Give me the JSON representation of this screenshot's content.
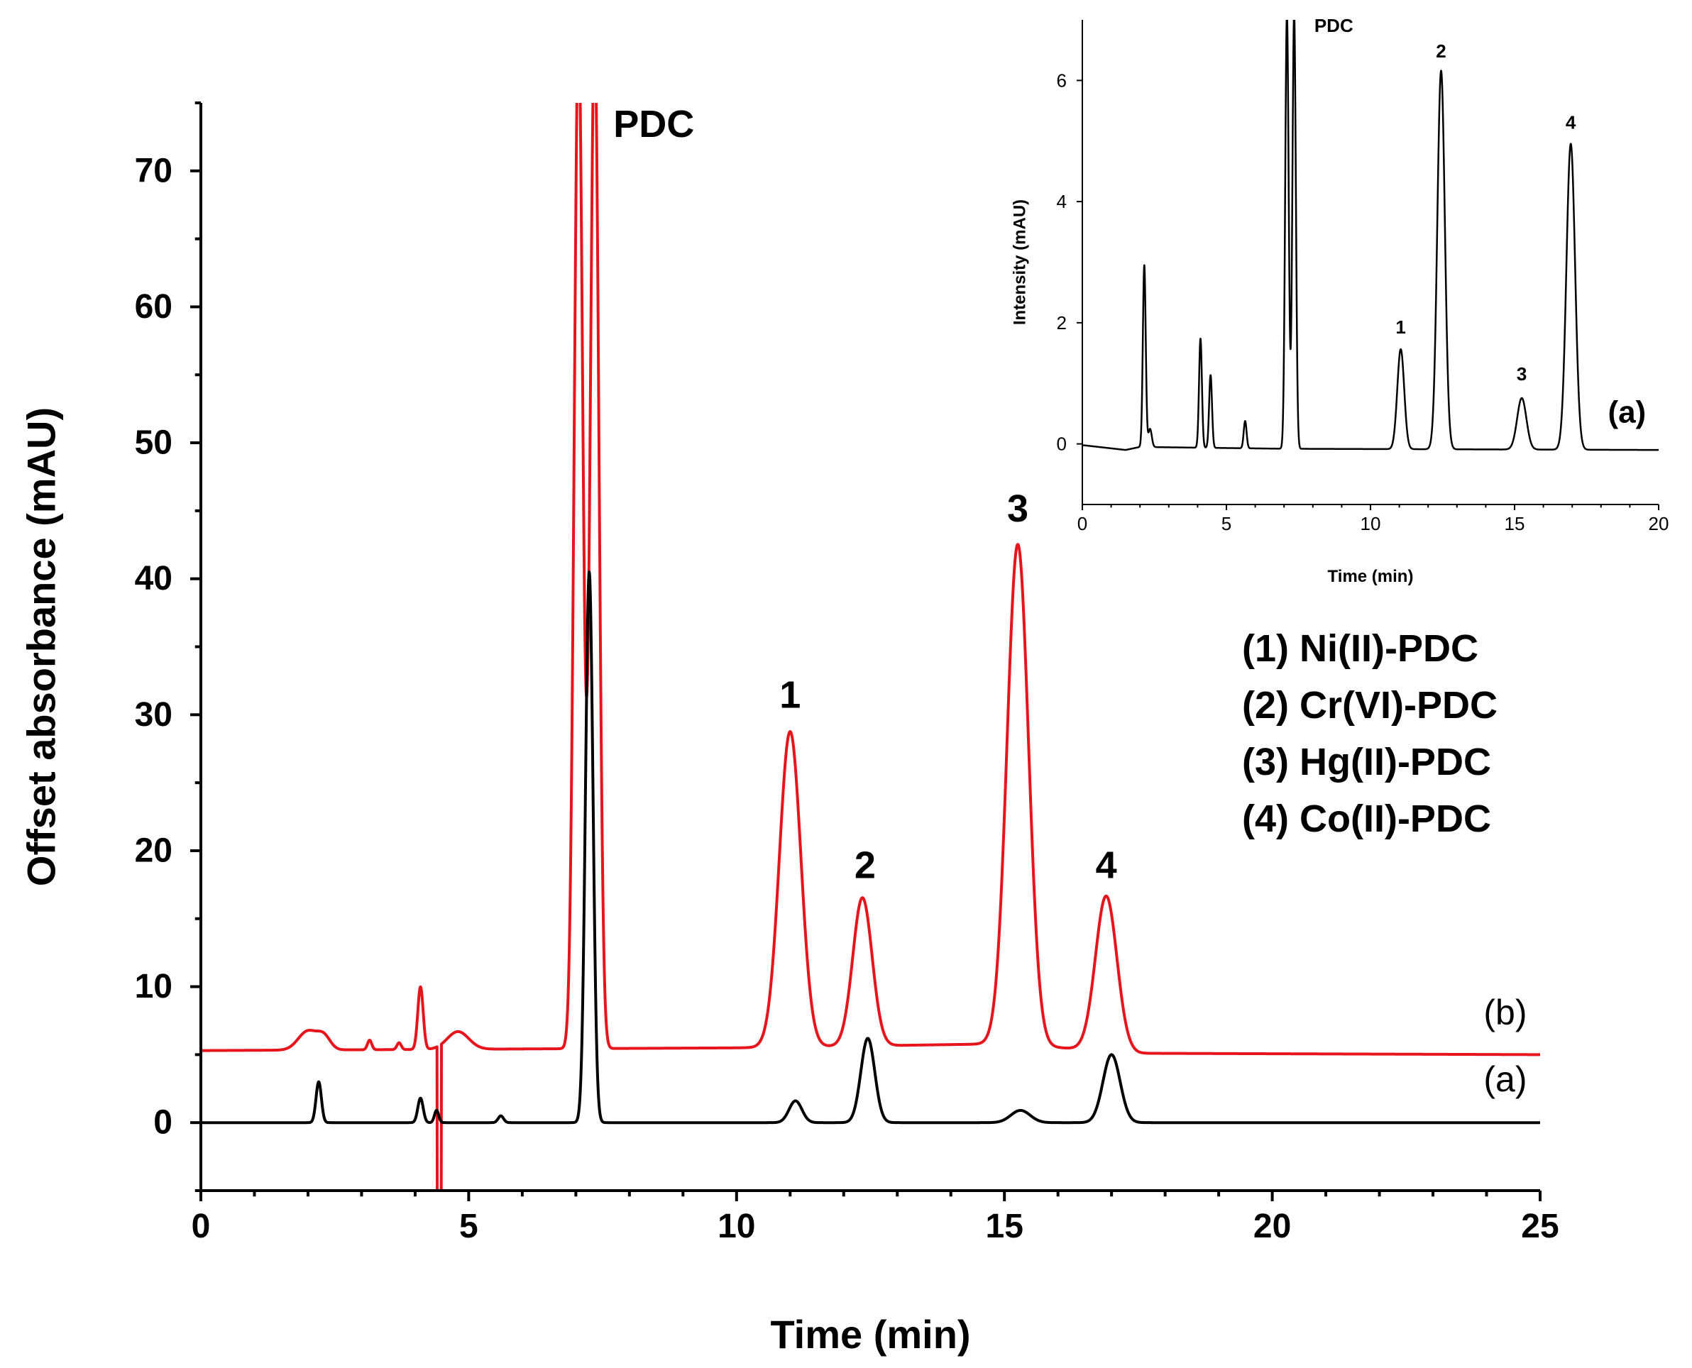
{
  "chart_data": [
    {
      "type": "line",
      "name": "main-chromatogram",
      "xlabel": "Time (min)",
      "ylabel": "Offset absorbance (mAU)",
      "xlim": [
        0,
        25
      ],
      "ylim": [
        -5,
        75
      ],
      "xticks": [
        0,
        5,
        10,
        15,
        20,
        25
      ],
      "yticks": [
        0,
        10,
        20,
        30,
        40,
        50,
        60,
        70
      ],
      "series": [
        {
          "name": "(b)",
          "color": "#e8141c",
          "baseline": [
            [
              0,
              5.3
            ],
            [
              10,
              5.5
            ],
            [
              15,
              5.8
            ],
            [
              17.5,
              5.1
            ],
            [
              25,
              5.0
            ]
          ],
          "peaks": [
            {
              "t": 2.0,
              "h": 1.4,
              "w": 0.18
            },
            {
              "t": 2.3,
              "h": 0.9,
              "w": 0.12
            },
            {
              "t": 3.15,
              "h": 0.7,
              "w": 0.04
            },
            {
              "t": 3.7,
              "h": 0.5,
              "w": 0.04
            },
            {
              "t": 4.1,
              "h": 4.6,
              "w": 0.05
            },
            {
              "t": 4.8,
              "h": 1.3,
              "w": 0.2
            },
            {
              "t": 7.05,
              "h": 75,
              "w": 0.08
            },
            {
              "t": 7.35,
              "h": 75,
              "w": 0.08
            },
            {
              "t": 11.0,
              "h": 23.2,
              "w": 0.2
            },
            {
              "t": 12.35,
              "h": 10.9,
              "w": 0.18
            },
            {
              "t": 15.25,
              "h": 36.8,
              "w": 0.2
            },
            {
              "t": 16.9,
              "h": 11.4,
              "w": 0.2
            }
          ],
          "dip": {
            "t": 4.45,
            "min": -5
          }
        },
        {
          "name": "(a)",
          "color": "#000000",
          "baseline": [
            [
              0,
              0
            ],
            [
              25,
              0
            ]
          ],
          "peaks": [
            {
              "t": 2.2,
              "h": 3.0,
              "w": 0.05
            },
            {
              "t": 4.1,
              "h": 1.8,
              "w": 0.05
            },
            {
              "t": 4.4,
              "h": 0.9,
              "w": 0.04
            },
            {
              "t": 5.6,
              "h": 0.5,
              "w": 0.05
            },
            {
              "t": 7.25,
              "h": 40.5,
              "w": 0.07
            },
            {
              "t": 11.1,
              "h": 1.6,
              "w": 0.12
            },
            {
              "t": 12.45,
              "h": 6.2,
              "w": 0.13
            },
            {
              "t": 15.3,
              "h": 0.9,
              "w": 0.18
            },
            {
              "t": 17.0,
              "h": 5.0,
              "w": 0.16
            }
          ]
        }
      ],
      "annotations": [
        {
          "text": "PDC",
          "x": 7.7,
          "y": 72.5,
          "style": "label"
        },
        {
          "text": "1",
          "x": 11.0,
          "y": 30.5,
          "style": "peak"
        },
        {
          "text": "2",
          "x": 12.4,
          "y": 18.0,
          "style": "peak"
        },
        {
          "text": "3",
          "x": 15.25,
          "y": 44.2,
          "style": "peak"
        },
        {
          "text": "4",
          "x": 16.9,
          "y": 18.0,
          "style": "peak"
        },
        {
          "text": "(b)",
          "x": 24.35,
          "y": 7.2,
          "style": "trace"
        },
        {
          "text": "(a)",
          "x": 24.35,
          "y": 2.3,
          "style": "trace"
        }
      ]
    },
    {
      "type": "line",
      "name": "inset-chromatogram",
      "xlabel": "Time (min)",
      "ylabel": "Intensity (mAU)",
      "xlim": [
        0,
        20
      ],
      "ylim": [
        -1,
        7
      ],
      "xticks": [
        0,
        5,
        10,
        15,
        20
      ],
      "yticks": [
        0,
        2,
        4,
        6
      ],
      "series": [
        {
          "name": "(a)",
          "color": "#000000",
          "baseline": [
            [
              0,
              -0.02
            ],
            [
              1.5,
              -0.1
            ],
            [
              2.0,
              -0.05
            ],
            [
              7.0,
              -0.08
            ],
            [
              20,
              -0.1
            ]
          ],
          "peaks": [
            {
              "t": 2.15,
              "h": 3.0,
              "w": 0.05
            },
            {
              "t": 2.35,
              "h": 0.3,
              "w": 0.06
            },
            {
              "t": 4.1,
              "h": 1.8,
              "w": 0.05
            },
            {
              "t": 4.45,
              "h": 1.2,
              "w": 0.05
            },
            {
              "t": 5.65,
              "h": 0.45,
              "w": 0.05
            },
            {
              "t": 7.1,
              "h": 7.2,
              "w": 0.06
            },
            {
              "t": 7.35,
              "h": 7.2,
              "w": 0.06
            },
            {
              "t": 11.05,
              "h": 1.65,
              "w": 0.12
            },
            {
              "t": 12.45,
              "h": 6.25,
              "w": 0.13
            },
            {
              "t": 15.25,
              "h": 0.85,
              "w": 0.16
            },
            {
              "t": 16.95,
              "h": 5.05,
              "w": 0.15
            }
          ]
        }
      ],
      "annotations": [
        {
          "text": "PDC",
          "x": 8.05,
          "y": 6.8,
          "style": "label"
        },
        {
          "text": "1",
          "x": 11.05,
          "y": 1.82,
          "style": "peak"
        },
        {
          "text": "2",
          "x": 12.45,
          "y": 6.38,
          "style": "peak"
        },
        {
          "text": "3",
          "x": 15.25,
          "y": 1.05,
          "style": "peak"
        },
        {
          "text": "4",
          "x": 16.95,
          "y": 5.2,
          "style": "peak"
        },
        {
          "text": "(a)",
          "x": 18.9,
          "y": 0.35,
          "style": "trace"
        }
      ]
    }
  ],
  "legend": [
    "(1) Ni(II)-PDC",
    "(2) Cr(VI)-PDC",
    "(3) Hg(II)-PDC",
    "(4) Co(II)-PDC"
  ]
}
